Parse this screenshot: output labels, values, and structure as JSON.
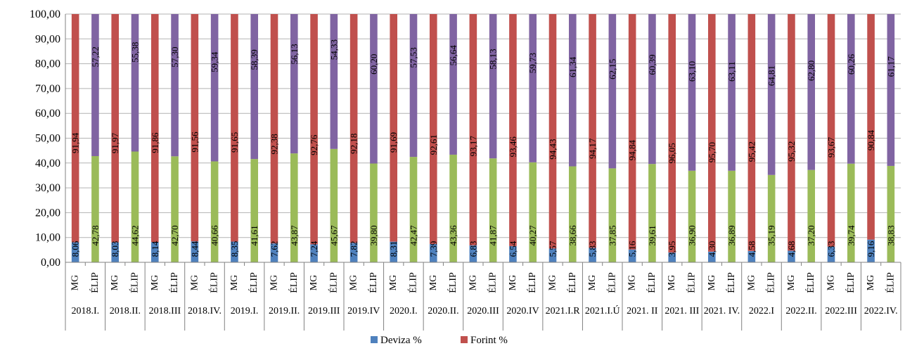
{
  "chart_data": {
    "type": "bar",
    "stacked": true,
    "percent_stacked": true,
    "ylim": [
      0,
      100
    ],
    "yticks": [
      "0,00",
      "10,00",
      "20,00",
      "30,00",
      "40,00",
      "50,00",
      "60,00",
      "70,00",
      "80,00",
      "90,00",
      "100,00"
    ],
    "grid": true,
    "legend_placement": "bottom-center",
    "periods": [
      "2018.I.",
      "2018.II.",
      "2018.III",
      "2018.IV.",
      "2019.I.",
      "2019.II.",
      "2019.III",
      "2019.IV",
      "2020.I.",
      "2020.II.",
      "2020.III",
      "2020.IV",
      "2021.I.R",
      "2021.I.Ú",
      "2021. II",
      "2021. III",
      "2021. IV.",
      "2022.I",
      "2022.II.",
      "2022.III",
      "2022.IV."
    ],
    "subcategories": [
      "MG",
      "ÉLIP"
    ],
    "series": [
      {
        "name": "Deviza %",
        "color": "#4f81bd",
        "MG": [
          8.06,
          8.03,
          8.14,
          8.44,
          8.35,
          7.62,
          7.24,
          7.82,
          8.31,
          7.39,
          6.83,
          6.54,
          5.57,
          5.83,
          5.16,
          3.95,
          4.3,
          4.58,
          4.68,
          6.33,
          9.16
        ],
        "MG_labels": [
          "8,06",
          "8,03",
          "8,14",
          "8,44",
          "8,35",
          "7,62",
          "7,24",
          "7,82",
          "8,31",
          "7,39",
          "6,83",
          "6,54",
          "5,57",
          "5,83",
          "5,16",
          "3,95",
          "4,30",
          "4,58",
          "4,68",
          "6,33",
          "9,16"
        ]
      },
      {
        "name": "Forint %",
        "color": "#c0504d",
        "MG": [
          91.94,
          91.97,
          91.86,
          91.56,
          91.65,
          92.38,
          92.76,
          92.18,
          91.69,
          92.61,
          93.17,
          93.46,
          94.43,
          94.17,
          94.84,
          96.05,
          95.7,
          95.42,
          95.32,
          93.67,
          90.84
        ],
        "MG_labels": [
          "91,94",
          "91,97",
          "91,86",
          "91,56",
          "91,65",
          "92,38",
          "92,76",
          "92,18",
          "91,69",
          "92,61",
          "93,17",
          "93,46",
          "94,43",
          "94,17",
          "94,84",
          "96,05",
          "95,70",
          "95,42",
          "95,32",
          "93,67",
          "90,84"
        ]
      },
      {
        "color": "#9bbb59",
        "ELIP": [
          42.78,
          44.62,
          42.7,
          40.66,
          41.61,
          43.87,
          45.67,
          39.8,
          42.47,
          43.36,
          41.87,
          40.27,
          38.66,
          37.85,
          39.61,
          36.9,
          36.89,
          35.19,
          37.2,
          39.74,
          38.83
        ],
        "ELIP_labels": [
          "42,78",
          "44,62",
          "42,70",
          "40,66",
          "41,61",
          "43,87",
          "45,67",
          "39,80",
          "42,47",
          "43,36",
          "41,87",
          "40,27",
          "38,66",
          "37,85",
          "39,61",
          "36,90",
          "36,89",
          "35,19",
          "37,20",
          "39,74",
          "38,83"
        ]
      },
      {
        "color": "#8064a2",
        "ELIP": [
          57.22,
          55.38,
          57.3,
          59.34,
          58.39,
          56.13,
          54.33,
          60.2,
          57.53,
          56.64,
          58.13,
          59.73,
          61.34,
          62.15,
          60.39,
          63.1,
          63.11,
          64.81,
          62.8,
          60.26,
          61.17
        ],
        "ELIP_labels": [
          "57,22",
          "55,38",
          "57,30",
          "59,34",
          "58,39",
          "56,13",
          "54,33",
          "60,20",
          "57,53",
          "56,64",
          "58,13",
          "59,73",
          "61,34",
          "62,15",
          "60,39",
          "63,10",
          "63,11",
          "64,81",
          "62,80",
          "60,26",
          "61,17"
        ]
      }
    ]
  }
}
